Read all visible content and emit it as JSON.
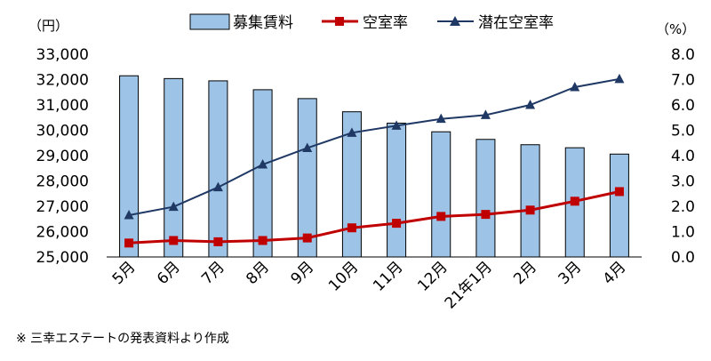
{
  "chart_data": {
    "type": "bar+line",
    "categories": [
      "5月",
      "6月",
      "7月",
      "8月",
      "9月",
      "10月",
      "11月",
      "12月",
      "21年1月",
      "2月",
      "3月",
      "4月"
    ],
    "series": [
      {
        "name": "募集賃料",
        "type": "bar",
        "axis": "left",
        "color": "#9dc3e6",
        "values": [
          32150,
          32040,
          31950,
          31600,
          31250,
          30730,
          30280,
          29940,
          29640,
          29430,
          29310,
          29060
        ]
      },
      {
        "name": "空室率",
        "type": "line",
        "axis": "right",
        "marker": "square",
        "color": "#c00000",
        "values": [
          0.55,
          0.65,
          0.6,
          0.65,
          0.75,
          1.15,
          1.33,
          1.6,
          1.68,
          1.85,
          2.2,
          2.58
        ]
      },
      {
        "name": "潜在空室率",
        "type": "line",
        "axis": "right",
        "marker": "triangle",
        "color": "#1f3864",
        "values": [
          1.65,
          1.98,
          2.75,
          3.65,
          4.3,
          4.9,
          5.18,
          5.45,
          5.6,
          6.0,
          6.7,
          7.02
        ]
      }
    ],
    "left_axis": {
      "unit": "（円）",
      "min": 25000,
      "max": 33000,
      "ticks": [
        "25,000",
        "26,000",
        "27,000",
        "28,000",
        "29,000",
        "30,000",
        "31,000",
        "32,000",
        "33,000"
      ]
    },
    "right_axis": {
      "unit": "（%）",
      "min": 0,
      "max": 8,
      "ticks": [
        "0.0",
        "1.0",
        "2.0",
        "3.0",
        "4.0",
        "5.0",
        "6.0",
        "7.0",
        "8.0"
      ]
    },
    "grid": false,
    "legend_position": "top"
  },
  "note": "※ 三幸エステートの発表資料より作成"
}
